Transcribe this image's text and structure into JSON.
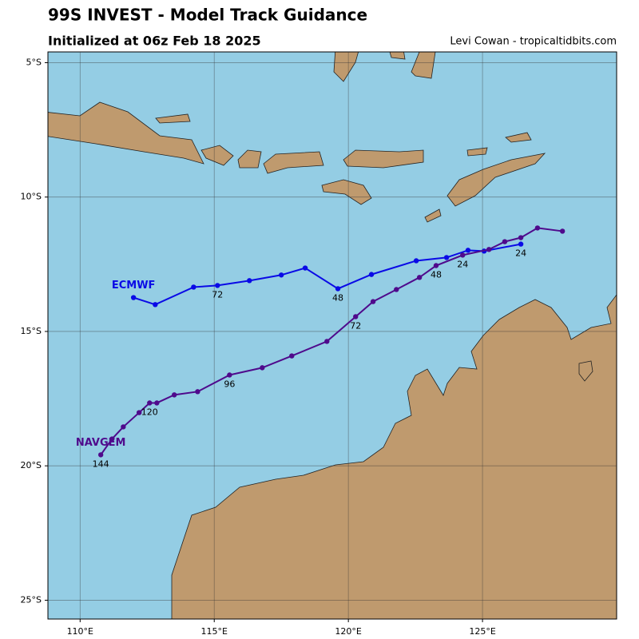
{
  "chart_data": {
    "type": "track",
    "title": "99S INVEST - Model Track Guidance",
    "subtitle": "Initialized at 06z Feb 18 2025",
    "credit": "Levi Cowan - tropicaltidbits.com",
    "xlim": [
      108.8,
      130
    ],
    "ylim": [
      -25.7,
      -4.6
    ],
    "xticks": [
      {
        "value": 110,
        "label": "110°E"
      },
      {
        "value": 115,
        "label": "115°E"
      },
      {
        "value": 120,
        "label": "120°E"
      },
      {
        "value": 125,
        "label": "125°E"
      }
    ],
    "yticks": [
      {
        "value": -5,
        "label": "5°S"
      },
      {
        "value": -10,
        "label": "10°S"
      },
      {
        "value": -15,
        "label": "15°S"
      },
      {
        "value": -20,
        "label": "20°S"
      },
      {
        "value": -25,
        "label": "25°S"
      }
    ],
    "grid": true,
    "series": [
      {
        "name": "ECMWF",
        "color": "#0a0ae6",
        "x": [
          126.43,
          125.06,
          124.46,
          123.66,
          122.53,
          120.86,
          119.61,
          118.39,
          117.5,
          116.31,
          115.12,
          114.23,
          112.8,
          111.99
        ],
        "values": [
          -11.75,
          -12.01,
          -11.98,
          -12.25,
          -12.37,
          -12.88,
          -13.41,
          -12.64,
          -12.9,
          -13.11,
          -13.29,
          -13.35,
          -14.0,
          -13.74
        ],
        "labels": [
          "24",
          null,
          null,
          null,
          null,
          null,
          "48",
          null,
          null,
          null,
          "72",
          null,
          null,
          null
        ]
      },
      {
        "name": "NAVGEM",
        "color": "#4f0a8c",
        "x": [
          127.98,
          127.05,
          126.43,
          125.83,
          125.24,
          124.26,
          123.27,
          122.65,
          121.79,
          120.92,
          120.27,
          119.2,
          117.89,
          116.79,
          115.57,
          114.38,
          113.51,
          112.86,
          112.59,
          112.2,
          111.61,
          111.19,
          110.77
        ],
        "values": [
          -11.27,
          -11.15,
          -11.51,
          -11.66,
          -11.95,
          -12.16,
          -12.55,
          -12.99,
          -13.44,
          -13.89,
          -14.45,
          -15.37,
          -15.91,
          -16.35,
          -16.62,
          -17.24,
          -17.36,
          -17.66,
          -17.66,
          -18.02,
          -18.55,
          -19.0,
          -19.59
        ],
        "labels": [
          null,
          null,
          null,
          null,
          null,
          "24",
          "48",
          null,
          null,
          null,
          "72",
          null,
          null,
          null,
          "96",
          null,
          null,
          null,
          "120",
          null,
          null,
          null,
          "144"
        ]
      }
    ]
  }
}
